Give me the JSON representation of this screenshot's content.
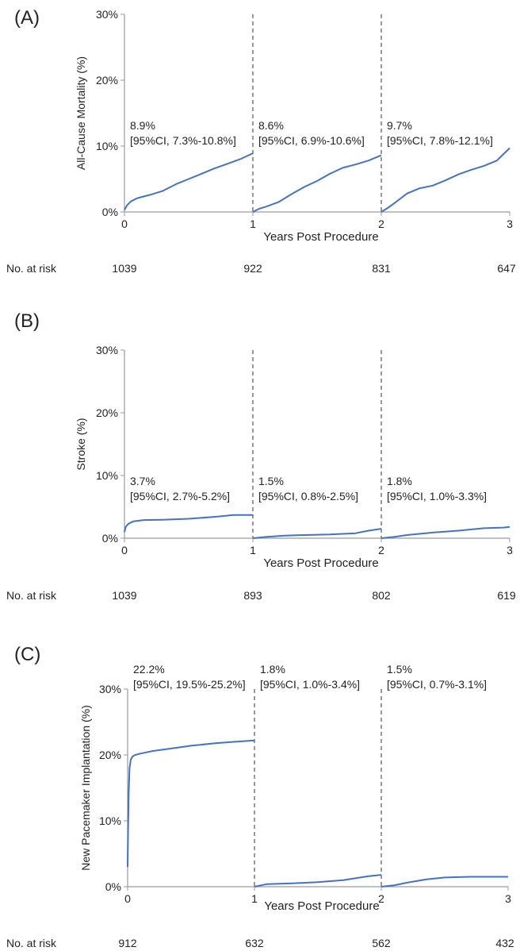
{
  "chart_data": [
    {
      "panel": "(A)",
      "type": "line",
      "ylabel": "All-Cause Mortality (%)",
      "xlabel": "Years Post Procedure",
      "xlim": [
        0,
        3
      ],
      "ylim": [
        0,
        30
      ],
      "y_ticks": [
        "0%",
        "10%",
        "20%",
        "30%"
      ],
      "x_ticks": [
        "0",
        "1",
        "2",
        "3"
      ],
      "line_color": "#4472c4",
      "segments": [
        {
          "x": [
            0,
            0.02,
            0.05,
            0.1,
            0.2,
            0.3,
            0.4,
            0.5,
            0.6,
            0.7,
            0.8,
            0.9,
            1.0
          ],
          "y": [
            0.3,
            1.0,
            1.6,
            2.1,
            2.6,
            3.2,
            4.2,
            5.0,
            5.8,
            6.6,
            7.3,
            8.0,
            8.9
          ],
          "annotation": "8.9%",
          "ci": "[95%CI, 7.3%-10.8%]"
        },
        {
          "x": [
            1.0,
            1.05,
            1.1,
            1.2,
            1.3,
            1.4,
            1.5,
            1.6,
            1.7,
            1.8,
            1.9,
            2.0
          ],
          "y": [
            0.0,
            0.5,
            0.8,
            1.5,
            2.7,
            3.8,
            4.7,
            5.8,
            6.7,
            7.2,
            7.8,
            8.6
          ],
          "annotation": "8.6%",
          "ci": "[95%CI, 6.9%-10.6%]"
        },
        {
          "x": [
            2.0,
            2.05,
            2.1,
            2.2,
            2.3,
            2.4,
            2.5,
            2.6,
            2.7,
            2.8,
            2.9,
            3.0
          ],
          "y": [
            0.0,
            0.6,
            1.3,
            2.8,
            3.6,
            4.0,
            4.8,
            5.7,
            6.4,
            7.0,
            7.8,
            9.7
          ],
          "annotation": "9.7%",
          "ci": "[95%CI, 7.8%-12.1%]"
        }
      ],
      "risk_label": "No. at risk",
      "at_risk": [
        "1039",
        "922",
        "831",
        "647"
      ]
    },
    {
      "panel": "(B)",
      "type": "line",
      "ylabel": "Stroke (%)",
      "xlabel": "Years  Post Procedure",
      "xlim": [
        0,
        3
      ],
      "ylim": [
        0,
        30
      ],
      "y_ticks": [
        "0%",
        "10%",
        "20%",
        "30%"
      ],
      "x_ticks": [
        "0",
        "1",
        "2",
        "3"
      ],
      "line_color": "#4472c4",
      "segments": [
        {
          "x": [
            0,
            0.01,
            0.03,
            0.07,
            0.15,
            0.3,
            0.5,
            0.7,
            0.85,
            1.0
          ],
          "y": [
            1.0,
            1.8,
            2.3,
            2.7,
            2.9,
            2.95,
            3.1,
            3.4,
            3.7,
            3.7
          ],
          "annotation": "3.7%",
          "ci": "[95%CI, 2.7%-5.2%]"
        },
        {
          "x": [
            1.0,
            1.1,
            1.25,
            1.4,
            1.6,
            1.8,
            1.9,
            2.0
          ],
          "y": [
            0.0,
            0.2,
            0.4,
            0.5,
            0.6,
            0.8,
            1.2,
            1.5
          ],
          "annotation": "1.5%",
          "ci": "[95%CI, 0.8%-2.5%]"
        },
        {
          "x": [
            2.0,
            2.1,
            2.2,
            2.4,
            2.6,
            2.8,
            2.95,
            3.0
          ],
          "y": [
            0.0,
            0.2,
            0.5,
            0.9,
            1.2,
            1.6,
            1.7,
            1.8
          ],
          "annotation": "1.8%",
          "ci": "[95%CI, 1.0%-3.3%]"
        }
      ],
      "risk_label": "No. at risk",
      "at_risk": [
        "1039",
        "893",
        "802",
        "619"
      ]
    },
    {
      "panel": "(C)",
      "type": "line",
      "ylabel": "New Pacemaker Implantation (%)",
      "xlabel": "Years Post Procedure",
      "xlim": [
        0,
        3
      ],
      "ylim": [
        0,
        30
      ],
      "y_ticks": [
        "0%",
        "10%",
        "20%",
        "30%"
      ],
      "x_ticks": [
        "0",
        "1",
        "2",
        "3"
      ],
      "line_color": "#4472c4",
      "segments": [
        {
          "x": [
            0,
            0.003,
            0.008,
            0.015,
            0.025,
            0.04,
            0.06,
            0.1,
            0.2,
            0.35,
            0.5,
            0.7,
            0.85,
            1.0
          ],
          "y": [
            3.0,
            8.0,
            14.0,
            18.0,
            19.3,
            19.8,
            20.0,
            20.2,
            20.6,
            21.0,
            21.4,
            21.8,
            22.0,
            22.2
          ],
          "annotation": "22.2%",
          "ci": "[95%CI, 19.5%-25.2%]"
        },
        {
          "x": [
            1.0,
            1.05,
            1.1,
            1.3,
            1.5,
            1.7,
            1.9,
            2.0
          ],
          "y": [
            0.0,
            0.2,
            0.4,
            0.5,
            0.7,
            1.0,
            1.6,
            1.8
          ],
          "annotation": "1.8%",
          "ci": "[95%CI, 1.0%-3.4%]"
        },
        {
          "x": [
            2.0,
            2.1,
            2.2,
            2.35,
            2.5,
            2.7,
            2.9,
            3.0
          ],
          "y": [
            0.0,
            0.2,
            0.6,
            1.1,
            1.4,
            1.5,
            1.5,
            1.5
          ],
          "annotation": "1.5%",
          "ci": "[95%CI, 0.7%-3.1%]"
        }
      ],
      "risk_label": "No. at risk",
      "at_risk": [
        "912",
        "632",
        "562",
        "432"
      ]
    }
  ]
}
